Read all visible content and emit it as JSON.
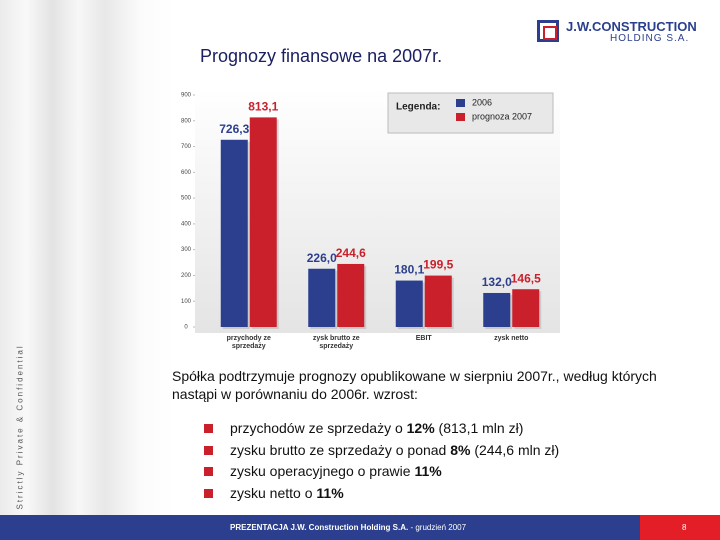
{
  "logo": {
    "name": "J.W.CONSTRUCTION",
    "sub": "HOLDING S.A."
  },
  "side_text": "Strictly Private & Confidential",
  "chart_data": {
    "type": "bar",
    "title": "Prognozy finansowe na 2007r.",
    "categories": [
      "przychody ze sprzedaży",
      "zysk brutto ze sprzedaży",
      "EBIT",
      "zysk netto"
    ],
    "series": [
      {
        "name": "2006",
        "color": "#2b3f8e",
        "values": [
          726.3,
          226.0,
          180.1,
          132.0
        ],
        "value_labels": [
          "726,3",
          "226,0",
          "180,1",
          "132,0"
        ]
      },
      {
        "name": "prognoza 2007",
        "color": "#c9202b",
        "values": [
          813.1,
          244.6,
          199.5,
          146.5
        ],
        "value_labels": [
          "813,1",
          "244,6",
          "199,5",
          "146,5"
        ]
      }
    ],
    "legend_title": "Legenda:",
    "legend": "top-right",
    "ylim": [
      0,
      900
    ],
    "yticks": [
      0,
      100,
      200,
      300,
      400,
      500,
      600,
      700,
      800,
      900
    ],
    "grid": false
  },
  "intro": "Spółka podtrzymuje prognozy opublikowane w sierpniu 2007r., według których nastąpi w porównaniu do 2006r. wzrost:",
  "bullets": [
    {
      "text": "przychodów ze sprzedaży o ",
      "bold": "12%",
      "rest": " (813,1 mln zł)"
    },
    {
      "text": "zysku brutto ze sprzedaży o ponad ",
      "bold": "8%",
      "rest": " (244,6 mln zł)"
    },
    {
      "text": "zysku operacyjnego o prawie ",
      "bold": "11%"
    },
    {
      "text": "zysku netto o ",
      "bold": "11%"
    }
  ],
  "footer": {
    "bold": "PREZENTACJA J.W. Construction Holding S.A.",
    "text": " - grudzień 2007",
    "page": "8"
  }
}
